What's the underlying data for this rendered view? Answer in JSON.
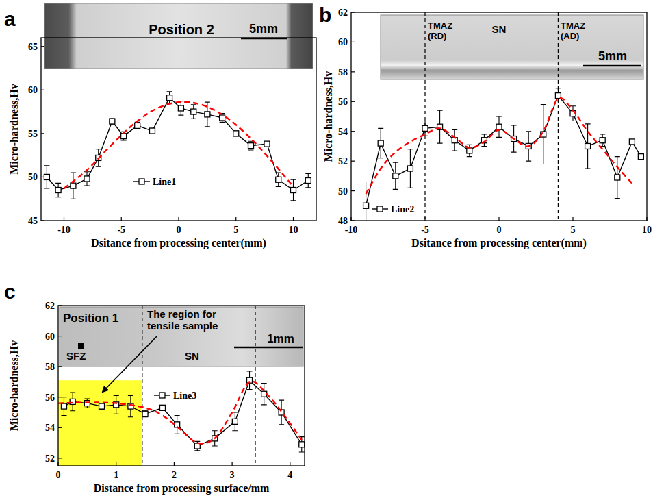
{
  "chart_data": [
    {
      "type": "line",
      "title": "a",
      "x_label": "Dsitance from processing center(mm)",
      "y_label": "Micro-hardness,Hv",
      "xlim": [
        -12,
        12
      ],
      "xticks": [
        -10,
        -5,
        0,
        5,
        10
      ],
      "ylim": [
        45,
        66
      ],
      "yticks": [
        45,
        50,
        55,
        60,
        65
      ],
      "legend": "lower left",
      "annotations": [
        "Position 2",
        "5mm"
      ],
      "series": [
        {
          "name": "Line1",
          "type": "line",
          "color": "#000000",
          "line_style": "solid",
          "marker": "square",
          "x": [
            -11.5,
            -10.5,
            -9.2,
            -8,
            -7,
            -5.8,
            -4.8,
            -3.6,
            -2.3,
            -0.8,
            0.2,
            1.3,
            2.5,
            3.8,
            5,
            6.3,
            7.7,
            8.7,
            10,
            11.3
          ],
          "values": [
            50.0,
            48.5,
            49.0,
            49.8,
            52.2,
            56.4,
            54.7,
            55.9,
            55.3,
            59.1,
            57.9,
            57.5,
            57.2,
            56.8,
            55.0,
            53.6,
            53.8,
            49.7,
            48.5,
            49.6
          ],
          "errors": [
            1.3,
            0.8,
            1.5,
            0.8,
            1.0,
            0.3,
            0.5,
            0.4,
            0.3,
            0.7,
            0.8,
            0.8,
            1.4,
            0.5,
            0.3,
            0.5,
            null,
            0.8,
            1.2,
            0.8
          ]
        },
        {
          "type": "spline",
          "color": "#ff0000",
          "line_style": "dashed",
          "marker": "none",
          "x": [
            -10,
            -8,
            -6,
            -4,
            -2,
            0,
            2,
            4,
            6,
            8,
            10
          ],
          "values": [
            48.7,
            50.8,
            53.5,
            56.0,
            57.8,
            58.6,
            58.3,
            57.0,
            54.8,
            52.0,
            48.9
          ]
        }
      ]
    },
    {
      "type": "line",
      "title": "b",
      "x_label": "Dsitance from processing center(mm)",
      "y_label": "Micro-hardness,Hv",
      "xlim": [
        -10,
        10
      ],
      "xticks": [
        -10,
        -5,
        0,
        5,
        10
      ],
      "ylim": [
        48,
        62
      ],
      "yticks": [
        48,
        50,
        52,
        54,
        56,
        58,
        60,
        62
      ],
      "legend": "lower left",
      "reference_lines": [
        -5,
        4
      ],
      "annotations": [
        "TMAZ (RD)",
        "SN",
        "TMAZ (AD)",
        "5mm"
      ],
      "series": [
        {
          "name": "Line2",
          "type": "line",
          "color": "#000000",
          "line_style": "solid",
          "marker": "square",
          "x": [
            -9,
            -8,
            -7,
            -6,
            -5,
            -4,
            -3,
            -2,
            -1,
            0,
            1,
            2,
            3,
            4,
            5,
            6,
            7,
            8,
            9,
            9.6
          ],
          "values": [
            49.0,
            53.2,
            51.0,
            51.5,
            54.2,
            54.3,
            53.4,
            52.7,
            53.4,
            54.3,
            53.5,
            53.0,
            53.8,
            56.4,
            55.2,
            53.0,
            53.4,
            50.9,
            53.3,
            52.3
          ],
          "errors": [
            1.6,
            1.0,
            0.9,
            1.3,
            0.5,
            1.1,
            0.7,
            0.4,
            0.4,
            0.7,
            0.9,
            1.0,
            2.0,
            0.5,
            0.5,
            1.5,
            0.4,
            1.4,
            null,
            null
          ]
        },
        {
          "type": "spline",
          "color": "#ff0000",
          "line_style": "dashed",
          "marker": "none",
          "x": [
            -9,
            -8,
            -7,
            -6,
            -5,
            -4,
            -3,
            -2,
            -1,
            0,
            1,
            2,
            3,
            4,
            5,
            6,
            7,
            8,
            9
          ],
          "values": [
            49.8,
            51.5,
            52.6,
            53.3,
            53.8,
            54.2,
            53.6,
            52.9,
            53.3,
            54.1,
            53.5,
            53.0,
            54.0,
            56.2,
            55.4,
            54.0,
            52.8,
            51.6,
            50.5
          ]
        }
      ]
    },
    {
      "type": "line",
      "title": "c",
      "x_label": "Distance from processing surface/mm",
      "y_label": "Micro-hardness,Hv",
      "xlim": [
        0,
        4.25
      ],
      "xticks": [
        0,
        1,
        2,
        3,
        4
      ],
      "ylim": [
        51.5,
        62
      ],
      "yticks": [
        52,
        54,
        56,
        58,
        60,
        62
      ],
      "legend": "center",
      "reference_lines": [
        1.45,
        3.4
      ],
      "highlight": {
        "x": [
          0,
          1.45
        ],
        "y": [
          51.5,
          57.1
        ],
        "color": "#ffff33"
      },
      "annotations": [
        "Position 1",
        "SFZ",
        "SN",
        "1mm",
        "The region for tensile sample"
      ],
      "series": [
        {
          "name": "Line3",
          "type": "line",
          "color": "#000000",
          "line_style": "solid",
          "marker": "square",
          "x": [
            0.1,
            0.25,
            0.5,
            0.75,
            1.0,
            1.25,
            1.5,
            1.8,
            2.05,
            2.4,
            2.7,
            3.05,
            3.3,
            3.55,
            3.85,
            4.2
          ],
          "values": [
            55.4,
            55.7,
            55.6,
            55.4,
            55.5,
            55.4,
            54.9,
            55.3,
            54.2,
            52.8,
            53.3,
            54.4,
            57.1,
            56.2,
            55.0,
            52.9
          ],
          "errors": [
            0.6,
            0.6,
            0.3,
            0.2,
            0.6,
            0.7,
            0.2,
            null,
            0.6,
            0.3,
            0.5,
            0.6,
            0.6,
            0.7,
            0.8,
            0.5
          ]
        },
        {
          "type": "spline",
          "color": "#ff0000",
          "line_style": "dashed",
          "marker": "none",
          "x": [
            0,
            0.5,
            1,
            1.5,
            1.8,
            2.1,
            2.4,
            2.7,
            3.0,
            3.3,
            3.6,
            3.9,
            4.2
          ],
          "values": [
            55.6,
            55.65,
            55.6,
            55.3,
            54.8,
            53.9,
            53.0,
            53.3,
            55.0,
            57.0,
            56.2,
            54.8,
            53.2
          ]
        }
      ]
    }
  ]
}
